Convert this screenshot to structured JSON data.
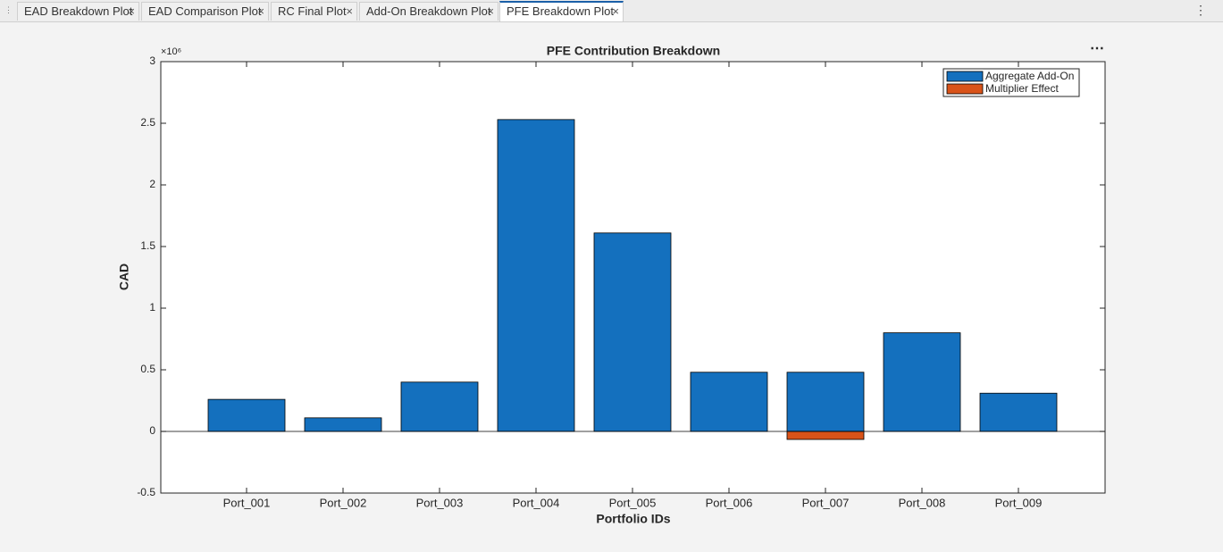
{
  "tabs": [
    "EAD Breakdown Plot",
    "EAD Comparison Plot",
    "RC Final Plot",
    "Add-On Breakdown Plot",
    "PFE Breakdown Plot"
  ],
  "selected_tab": 4,
  "chart_data": {
    "type": "bar",
    "stacked": true,
    "title": "PFE Contribution Breakdown",
    "x_label": "Portfolio IDs",
    "y_label": "CAD",
    "y_exponent": "×10⁶",
    "categories": [
      "Port_001",
      "Port_002",
      "Port_003",
      "Port_004",
      "Port_005",
      "Port_006",
      "Port_007",
      "Port_008",
      "Port_009"
    ],
    "series": [
      {
        "name": "Aggregate Add-On",
        "color": "#1470be",
        "values": [
          0.26,
          0.11,
          0.4,
          2.53,
          1.61,
          0.48,
          0.48,
          0.8,
          0.31
        ]
      },
      {
        "name": "Multiplier Effect",
        "color": "#d95319",
        "values": [
          0,
          0,
          0,
          0,
          0,
          0,
          -0.065,
          0,
          0
        ]
      }
    ],
    "ylim": [
      -0.5,
      3
    ],
    "yticks": [
      -0.5,
      0,
      0.5,
      1,
      1.5,
      2,
      2.5,
      3
    ],
    "legend": "top-right"
  }
}
